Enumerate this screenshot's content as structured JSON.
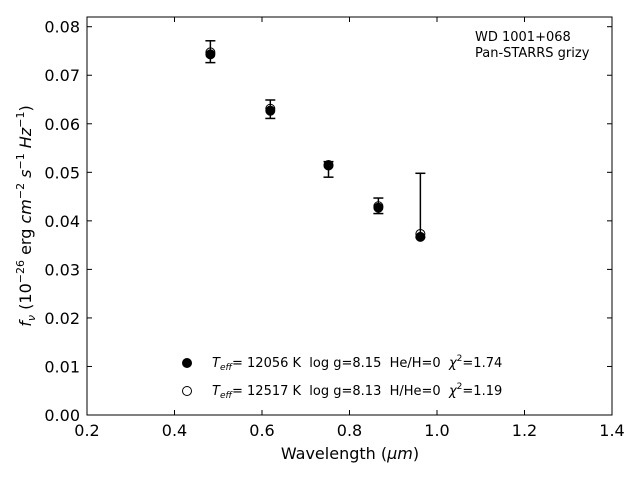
{
  "chart_data": {
    "type": "scatter",
    "title": "",
    "xlabel": {
      "prefix": "Wavelength (",
      "unit": "μm",
      "suffix": ")"
    },
    "ylabel": {
      "f": "f",
      "nu": "ν",
      "open": " (10",
      "exp1": "−26",
      "erg": " erg ",
      "cm": "cm",
      "exp2": "−2",
      "s": " s",
      "exp3": "−1",
      "hz": " Hz",
      "exp4": "−1",
      "close": ")"
    },
    "xlim": [
      0.2,
      1.4
    ],
    "ylim": [
      0.0,
      0.082
    ],
    "xticks": [
      0.2,
      0.4,
      0.6,
      0.8,
      1.0,
      1.2,
      1.4
    ],
    "xtick_labels": [
      "0.2",
      "0.4",
      "0.6",
      "0.8",
      "1.0",
      "1.2",
      "1.4"
    ],
    "yticks": [
      0.0,
      0.01,
      0.02,
      0.03,
      0.04,
      0.05,
      0.06,
      0.07,
      0.08
    ],
    "ytick_labels": [
      "0.00",
      "0.01",
      "0.02",
      "0.03",
      "0.04",
      "0.05",
      "0.06",
      "0.07",
      "0.08"
    ],
    "grid": false,
    "annotation": [
      "WD 1001+068",
      "Pan-STARRS grizy"
    ],
    "observed": [
      {
        "x": 0.482,
        "y": 0.0748,
        "yerr_low": 0.0726,
        "yerr_high": 0.0771
      },
      {
        "x": 0.619,
        "y": 0.063,
        "yerr_low": 0.0611,
        "yerr_high": 0.0649
      },
      {
        "x": 0.752,
        "y": 0.0512,
        "yerr_low": 0.049,
        "yerr_high": 0.0522
      },
      {
        "x": 0.866,
        "y": 0.0432,
        "yerr_low": 0.0415,
        "yerr_high": 0.0447
      },
      {
        "x": 0.962,
        "y": 0.0371,
        "yerr_low": 0.0366,
        "yerr_high": 0.0498
      }
    ],
    "series": [
      {
        "marker": "filled",
        "legend": {
          "teff_sym": "T",
          "teff_sub": "eff",
          "text": "= 12056 K  log g=8.15  He/H=0  ",
          "chi": "χ",
          "chi_exp": "2",
          "chi_val": "=1.74"
        },
        "values": [
          {
            "x": 0.482,
            "y": 0.0743
          },
          {
            "x": 0.619,
            "y": 0.0627
          },
          {
            "x": 0.752,
            "y": 0.0514
          },
          {
            "x": 0.866,
            "y": 0.0427
          },
          {
            "x": 0.962,
            "y": 0.0367
          }
        ]
      },
      {
        "marker": "open",
        "legend": {
          "teff_sym": "T",
          "teff_sub": "eff",
          "text": "= 12517 K  log g=8.13  H/He=0  ",
          "chi": "χ",
          "chi_exp": "2",
          "chi_val": "=1.19"
        },
        "values": [
          {
            "x": 0.482,
            "y": 0.0747
          },
          {
            "x": 0.619,
            "y": 0.0631
          },
          {
            "x": 0.752,
            "y": 0.0515
          },
          {
            "x": 0.866,
            "y": 0.043
          },
          {
            "x": 0.962,
            "y": 0.0373
          }
        ]
      }
    ]
  }
}
